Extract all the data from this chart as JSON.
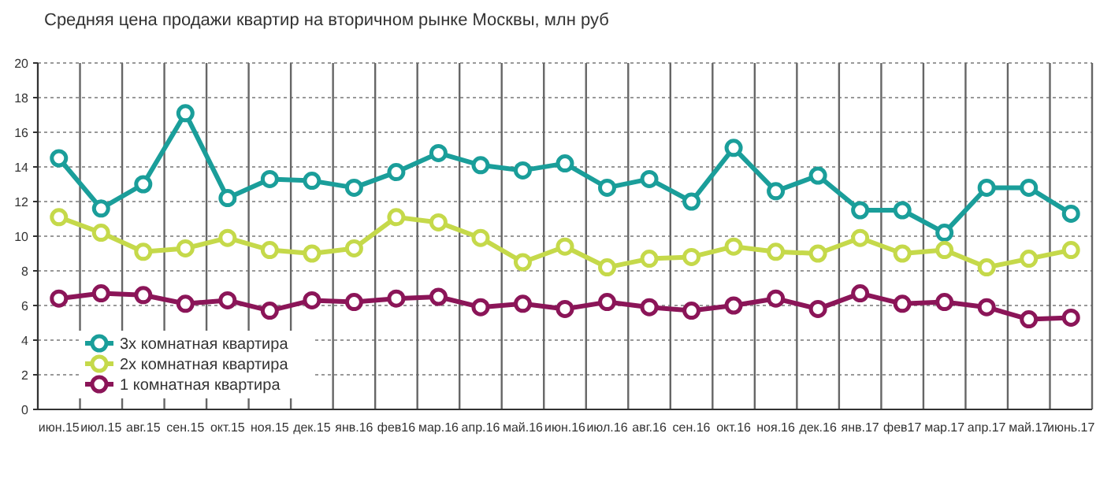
{
  "chart_data": {
    "type": "line",
    "title": "Средняя цена продажи квартир на вторичном рынке Москвы, млн руб",
    "categories": [
      "июн.15",
      "июл.15",
      "авг.15",
      "сен.15",
      "окт.15",
      "ноя.15",
      "дек.15",
      "янв.16",
      "фев16",
      "мар.16",
      "апр.16",
      "май.16",
      "июн.16",
      "июл.16",
      "авг.16",
      "сен.16",
      "окт.16",
      "ноя.16",
      "дек.16",
      "янв.17",
      "фев17",
      "мар.17",
      "апр.17",
      "май.17",
      "июнь.17"
    ],
    "series": [
      {
        "name": "3х комнатная квартира",
        "color": "#1a9e9a",
        "values": [
          14.5,
          11.6,
          13.0,
          17.1,
          12.2,
          13.3,
          13.2,
          12.8,
          13.7,
          14.8,
          14.1,
          13.8,
          14.2,
          12.8,
          13.3,
          12.0,
          15.1,
          12.6,
          13.5,
          11.5,
          11.5,
          10.2,
          12.8,
          12.8,
          11.3
        ]
      },
      {
        "name": "2х комнатная квартира",
        "color": "#c5d94a",
        "values": [
          11.1,
          10.2,
          9.1,
          9.3,
          9.9,
          9.2,
          9.0,
          9.3,
          11.1,
          10.8,
          9.9,
          8.5,
          9.4,
          8.2,
          8.7,
          8.8,
          9.4,
          9.1,
          9.0,
          9.9,
          9.0,
          9.2,
          8.2,
          8.7,
          9.2
        ]
      },
      {
        "name": "1 комнатная квартира",
        "color": "#8b1558",
        "values": [
          6.4,
          6.7,
          6.6,
          6.1,
          6.3,
          5.7,
          6.3,
          6.2,
          6.4,
          6.5,
          5.9,
          6.1,
          5.8,
          6.2,
          5.9,
          5.7,
          6.0,
          6.4,
          5.8,
          6.7,
          6.1,
          6.2,
          5.9,
          5.2,
          5.3
        ]
      }
    ],
    "ylim": [
      0,
      20
    ],
    "yticks": [
      0,
      2,
      4,
      6,
      8,
      10,
      12,
      14,
      16,
      18,
      20
    ],
    "grid": true,
    "legend": "bottom left",
    "marker": "circle",
    "line_style": "solid"
  }
}
